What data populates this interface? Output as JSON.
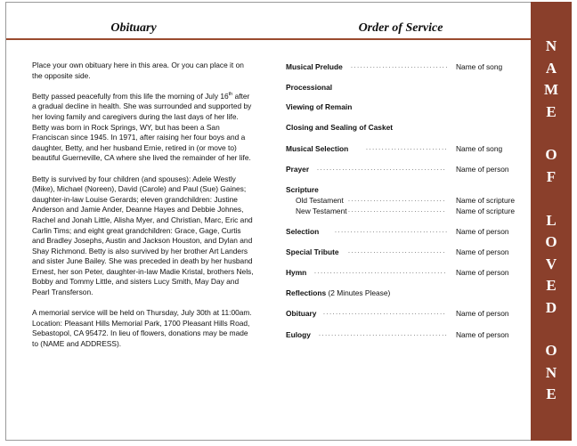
{
  "obituary": {
    "title": "Obituary",
    "p1": "Place your own obituary here in this area. Or you can place it on the opposite side.",
    "p2_a": "Betty passed peacefully from this life the morning of July 16",
    "p2_sup": "th",
    "p2_b": " after a gradual decline in health.  She was surrounded and supported by her loving family and caregivers during the last days of her life.  Betty was born in Rock Springs, WY, but has been a San Franciscan since 1945.  In 1971, after raising her four boys and a daughter, Betty, and her husband Ernie, retired in (or move to) beautiful Guerneville, CA where she lived the remainder of her life.",
    "p3": "Betty is survived by four children (and spouses): Adele Westly (Mike), Michael (Noreen), David (Carole) and Paul (Sue) Gaines;  daughter-in-law Louise Gerards;  eleven grandchildren: Justine Anderson and Jamie Ander, Deanne Hayes and Debbie Johnes, Rachel and Jonah Little, Alisha Myer, and Christian, Marc, Eric and Carlin Tims;  and eight great grandchildren: Grace, Gage, Curtis and Bradley Josephs, Austin and Jackson Houston, and Dylan and Shay Richmond.  Betty is also survived by her brother Art Landers and sister June Bailey.  She was preceded in death by her husband Ernest, her son Peter, daughter-in-law Madie Kristal, brothers Nels, Bobby and Tommy Little, and sisters Lucy Smith, May Day and Pearl Transferson.",
    "p4": "A memorial service will be held on Thursday, July 30th at 11:00am.  Location:  Pleasant Hills Memorial Park, 1700 Pleasant Hills Road, Sebastopol, CA 95472.  In lieu of flowers, donations may be made to (NAME and ADDRESS)."
  },
  "service": {
    "title": "Order of Service",
    "items": [
      {
        "label": "Musical Prelude",
        "value": "Name of song"
      },
      {
        "label": "Processional",
        "value": ""
      },
      {
        "label": "Viewing of Remain",
        "value": ""
      },
      {
        "label": "Closing and Sealing of Casket",
        "value": ""
      },
      {
        "label": "Musical Selection",
        "value": "Name of song"
      },
      {
        "label": "Prayer",
        "value": "Name of person"
      },
      {
        "label": "Scripture",
        "value": ""
      },
      {
        "label": "Old Testament",
        "value": "Name of scripture"
      },
      {
        "label": "New Testament",
        "value": "Name of scripture"
      },
      {
        "label": "Selection",
        "value": "Name of person"
      },
      {
        "label": "Special Tribute",
        "value": "Name of person"
      },
      {
        "label": "Hymn",
        "value": "Name of person"
      },
      {
        "label": "Reflections",
        "extra": " (2 Minutes Please)",
        "value": ""
      },
      {
        "label": "Obituary",
        "value": "Name of person"
      },
      {
        "label": "Eulogy",
        "value": "Name of person"
      }
    ]
  },
  "banner": {
    "text": "NAME OF LOVED ONE",
    "color": "#8a3f2b"
  }
}
